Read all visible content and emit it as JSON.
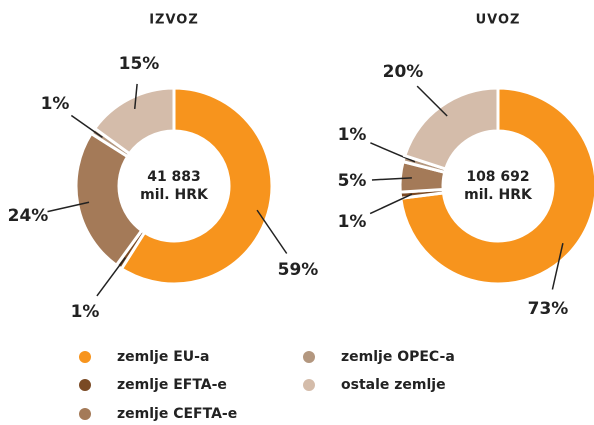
{
  "chart_data": [
    {
      "type": "pie",
      "title": "IZVOZ",
      "center_label": [
        "41 883",
        "mil. HRK"
      ],
      "categories": [
        "zemlje EU-a",
        "zemlje EFTA-e",
        "zemlje CEFTA-e",
        "zemlje OPEC-a",
        "ostale zemlje"
      ],
      "values": [
        59,
        1,
        24,
        1,
        15
      ],
      "value_labels": [
        "59%",
        "1%",
        "24%",
        "1%",
        "15%"
      ],
      "colors": [
        "#f7941d",
        "#7a4a25",
        "#a47a58",
        "#b3977f",
        "#d4bcaa"
      ]
    },
    {
      "type": "pie",
      "title": "UVOZ",
      "center_label": [
        "108 692",
        "mil. HRK"
      ],
      "categories": [
        "zemlje EU-a",
        "zemlje EFTA-e",
        "zemlje CEFTA-e",
        "zemlje OPEC-a",
        "ostale zemlje"
      ],
      "values": [
        73,
        1,
        5,
        1,
        20
      ],
      "value_labels": [
        "73%",
        "1%",
        "5%",
        "1%",
        "20%"
      ],
      "colors": [
        "#f7941d",
        "#7a4a25",
        "#a47a58",
        "#b3977f",
        "#d4bcaa"
      ]
    }
  ]
}
